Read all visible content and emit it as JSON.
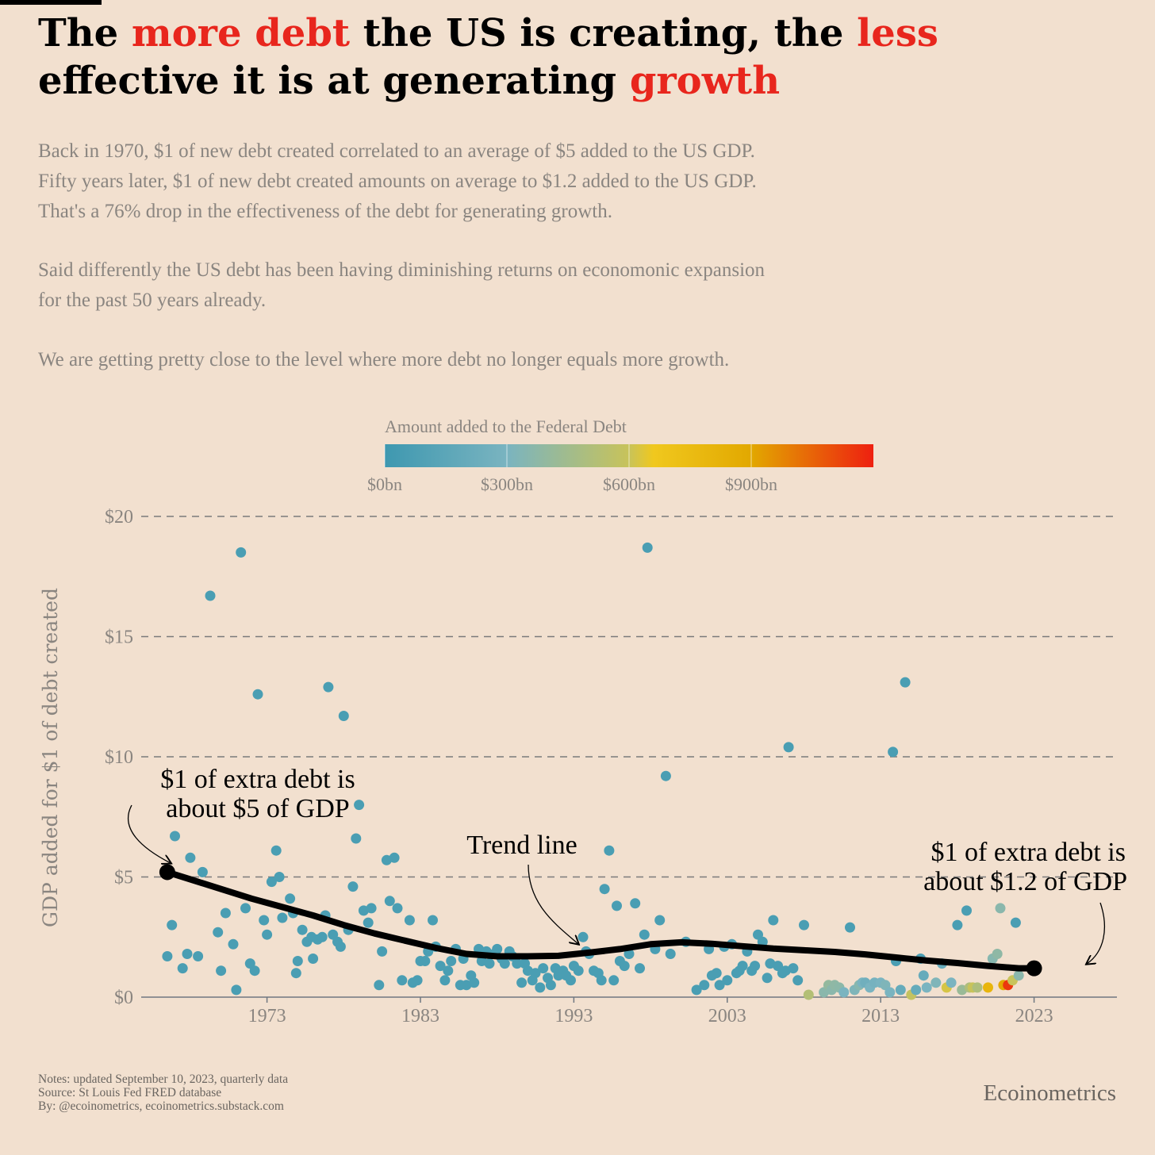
{
  "title": {
    "seg1": "The ",
    "hl1": "more debt",
    "seg2": " the US is creating, the ",
    "hl2": "less",
    "seg3": "effective it is at generating ",
    "hl3": "growth"
  },
  "subtitle": {
    "line1": "Back in 1970, $1 of new debt created correlated to an average of $5 added to the US GDP.",
    "line2": "Fifty years later, $1 of new debt created amounts on average to $1.2 added to the US GDP.",
    "line3": "That's a 76% drop in the effectiveness of the debt for generating growth.",
    "line4": "Said differently the US debt has been having diminishing returns on economonic expansion",
    "line5": "for the past 50 years already.",
    "line6": "We are getting pretty close to the level where more debt no longer equals more growth."
  },
  "chart_data": {
    "type": "scatter",
    "ylabel": "GDP added for $1 of debt created",
    "xlabel": "",
    "ylim": [
      0,
      20
    ],
    "xlim": [
      1964.8,
      2028.4
    ],
    "yticks": [
      0,
      5,
      10,
      15,
      20
    ],
    "ytick_labels": [
      "$0",
      "$5",
      "$10",
      "$15",
      "$20"
    ],
    "xticks": [
      1973,
      1983,
      1993,
      2003,
      2013,
      2023
    ],
    "xtick_labels": [
      "1973",
      "1983",
      "1993",
      "2003",
      "2013",
      "2023"
    ],
    "grid": "horizontal dashed",
    "colorbar": {
      "title": "Amount added to the Federal Debt",
      "ticks": [
        0,
        300,
        600,
        900
      ],
      "tick_labels": [
        "$0bn",
        "$300bn",
        "$600bn",
        "$900bn"
      ],
      "range": [
        0,
        1200
      ],
      "colors": [
        "#3e98b0",
        "#7ab4c0",
        "#c8c35a",
        "#f0c81e",
        "#e2a800",
        "#ee2010"
      ]
    },
    "points": [
      [
        1966.5,
        5.2,
        80
      ],
      [
        1966.5,
        1.7,
        60
      ],
      [
        1966.8,
        3.0,
        60
      ],
      [
        1967.0,
        6.7,
        70
      ],
      [
        1967.5,
        1.2,
        60
      ],
      [
        1967.8,
        1.8,
        60
      ],
      [
        1968.0,
        5.8,
        70
      ],
      [
        1968.5,
        1.7,
        60
      ],
      [
        1968.8,
        5.2,
        60
      ],
      [
        1969.3,
        16.7,
        60
      ],
      [
        1969.8,
        2.7,
        60
      ],
      [
        1970.0,
        1.1,
        60
      ],
      [
        1970.3,
        3.5,
        60
      ],
      [
        1970.8,
        2.2,
        60
      ],
      [
        1971.0,
        0.3,
        60
      ],
      [
        1971.3,
        18.5,
        60
      ],
      [
        1971.6,
        3.7,
        60
      ],
      [
        1971.9,
        1.4,
        60
      ],
      [
        1972.2,
        1.1,
        60
      ],
      [
        1972.4,
        12.6,
        60
      ],
      [
        1972.8,
        3.2,
        60
      ],
      [
        1973.0,
        2.6,
        60
      ],
      [
        1973.3,
        4.8,
        60
      ],
      [
        1973.6,
        6.1,
        60
      ],
      [
        1973.8,
        5.0,
        60
      ],
      [
        1974.0,
        3.3,
        60
      ],
      [
        1974.5,
        4.1,
        60
      ],
      [
        1974.7,
        3.5,
        60
      ],
      [
        1974.9,
        1.0,
        60
      ],
      [
        1975.0,
        1.5,
        60
      ],
      [
        1975.3,
        2.8,
        60
      ],
      [
        1975.6,
        2.3,
        60
      ],
      [
        1975.9,
        2.5,
        60
      ],
      [
        1976.0,
        1.6,
        60
      ],
      [
        1976.3,
        2.4,
        60
      ],
      [
        1976.6,
        2.5,
        60
      ],
      [
        1976.8,
        3.4,
        60
      ],
      [
        1977.0,
        12.9,
        60
      ],
      [
        1977.3,
        2.6,
        60
      ],
      [
        1977.6,
        2.3,
        60
      ],
      [
        1977.8,
        2.1,
        60
      ],
      [
        1978.0,
        11.7,
        60
      ],
      [
        1978.3,
        2.8,
        60
      ],
      [
        1978.6,
        4.6,
        60
      ],
      [
        1978.8,
        6.6,
        60
      ],
      [
        1979.0,
        8.0,
        60
      ],
      [
        1979.3,
        3.6,
        60
      ],
      [
        1979.6,
        3.1,
        60
      ],
      [
        1979.8,
        3.7,
        60
      ],
      [
        1980.3,
        0.5,
        60
      ],
      [
        1980.5,
        1.9,
        60
      ],
      [
        1980.8,
        5.7,
        60
      ],
      [
        1981.0,
        4.0,
        60
      ],
      [
        1981.3,
        5.8,
        60
      ],
      [
        1981.5,
        3.7,
        60
      ],
      [
        1981.8,
        0.7,
        60
      ],
      [
        1982.3,
        3.2,
        60
      ],
      [
        1982.5,
        0.6,
        60
      ],
      [
        1982.8,
        0.7,
        60
      ],
      [
        1983.0,
        1.5,
        60
      ],
      [
        1983.3,
        1.5,
        60
      ],
      [
        1983.5,
        1.9,
        60
      ],
      [
        1983.8,
        3.2,
        60
      ],
      [
        1984.0,
        2.1,
        60
      ],
      [
        1984.3,
        1.3,
        60
      ],
      [
        1984.6,
        0.7,
        60
      ],
      [
        1984.8,
        1.1,
        60
      ],
      [
        1985.0,
        1.5,
        60
      ],
      [
        1985.3,
        2.0,
        60
      ],
      [
        1985.6,
        0.5,
        60
      ],
      [
        1985.8,
        1.6,
        60
      ],
      [
        1986.0,
        0.5,
        60
      ],
      [
        1986.3,
        0.9,
        60
      ],
      [
        1986.5,
        0.6,
        60
      ],
      [
        1986.8,
        2.0,
        60
      ],
      [
        1987.0,
        1.5,
        60
      ],
      [
        1987.3,
        1.9,
        60
      ],
      [
        1987.5,
        1.4,
        60
      ],
      [
        1987.8,
        1.8,
        60
      ],
      [
        1988.0,
        2.0,
        60
      ],
      [
        1988.3,
        1.6,
        60
      ],
      [
        1988.5,
        1.4,
        60
      ],
      [
        1988.8,
        1.9,
        60
      ],
      [
        1989.0,
        1.7,
        60
      ],
      [
        1989.3,
        1.4,
        60
      ],
      [
        1989.6,
        0.6,
        60
      ],
      [
        1989.8,
        1.4,
        60
      ],
      [
        1990.0,
        1.1,
        60
      ],
      [
        1990.3,
        0.7,
        60
      ],
      [
        1990.5,
        1.0,
        60
      ],
      [
        1990.8,
        0.4,
        60
      ],
      [
        1991.0,
        1.2,
        60
      ],
      [
        1991.3,
        0.8,
        60
      ],
      [
        1991.5,
        0.5,
        60
      ],
      [
        1991.8,
        1.2,
        60
      ],
      [
        1992.0,
        0.9,
        60
      ],
      [
        1992.3,
        1.1,
        60
      ],
      [
        1992.5,
        0.9,
        60
      ],
      [
        1992.8,
        0.7,
        60
      ],
      [
        1993.0,
        1.3,
        60
      ],
      [
        1993.3,
        1.1,
        60
      ],
      [
        1993.6,
        2.5,
        60
      ],
      [
        1993.8,
        1.9,
        60
      ],
      [
        1994.0,
        1.8,
        60
      ],
      [
        1994.3,
        1.1,
        60
      ],
      [
        1994.6,
        1.0,
        60
      ],
      [
        1994.8,
        0.7,
        60
      ],
      [
        1995.0,
        4.5,
        60
      ],
      [
        1995.3,
        6.1,
        60
      ],
      [
        1995.6,
        0.7,
        60
      ],
      [
        1995.8,
        3.8,
        60
      ],
      [
        1996.0,
        1.5,
        60
      ],
      [
        1996.3,
        1.3,
        60
      ],
      [
        1996.6,
        1.8,
        60
      ],
      [
        1997.0,
        3.9,
        60
      ],
      [
        1997.3,
        1.2,
        60
      ],
      [
        1997.6,
        2.6,
        60
      ],
      [
        1997.8,
        18.7,
        60
      ],
      [
        1998.3,
        2.0,
        60
      ],
      [
        1998.6,
        3.2,
        60
      ],
      [
        1999.0,
        9.2,
        60
      ],
      [
        1999.3,
        1.8,
        60
      ],
      [
        2000.3,
        2.3,
        60
      ],
      [
        2001.0,
        0.3,
        60
      ],
      [
        2001.5,
        0.5,
        60
      ],
      [
        2001.8,
        2.0,
        60
      ],
      [
        2002.0,
        0.9,
        60
      ],
      [
        2002.3,
        1.0,
        60
      ],
      [
        2002.5,
        0.5,
        60
      ],
      [
        2002.8,
        2.1,
        60
      ],
      [
        2003.0,
        0.7,
        60
      ],
      [
        2003.3,
        2.2,
        60
      ],
      [
        2003.6,
        1.0,
        60
      ],
      [
        2003.8,
        1.1,
        60
      ],
      [
        2004.0,
        1.3,
        60
      ],
      [
        2004.3,
        1.9,
        60
      ],
      [
        2004.6,
        1.1,
        60
      ],
      [
        2004.8,
        1.3,
        60
      ],
      [
        2005.0,
        2.6,
        60
      ],
      [
        2005.3,
        2.3,
        60
      ],
      [
        2005.6,
        0.8,
        60
      ],
      [
        2005.8,
        1.4,
        60
      ],
      [
        2006.0,
        3.2,
        60
      ],
      [
        2006.3,
        1.3,
        60
      ],
      [
        2006.6,
        1.0,
        60
      ],
      [
        2006.8,
        1.1,
        60
      ],
      [
        2007.0,
        10.4,
        60
      ],
      [
        2007.3,
        1.2,
        60
      ],
      [
        2007.6,
        0.7,
        60
      ],
      [
        2008.0,
        3.0,
        60
      ],
      [
        2008.3,
        0.1,
        520
      ],
      [
        2009.3,
        0.2,
        360
      ],
      [
        2009.6,
        0.5,
        400
      ],
      [
        2009.8,
        0.3,
        360
      ],
      [
        2010.0,
        0.5,
        380
      ],
      [
        2010.3,
        0.4,
        370
      ],
      [
        2010.6,
        0.2,
        300
      ],
      [
        2011.0,
        2.9,
        60
      ],
      [
        2011.3,
        0.3,
        320
      ],
      [
        2011.6,
        0.5,
        350
      ],
      [
        2011.8,
        0.6,
        300
      ],
      [
        2012.0,
        0.6,
        250
      ],
      [
        2012.3,
        0.4,
        300
      ],
      [
        2012.6,
        0.6,
        280
      ],
      [
        2013.0,
        0.6,
        300
      ],
      [
        2013.3,
        0.5,
        320
      ],
      [
        2013.6,
        0.2,
        300
      ],
      [
        2013.8,
        10.2,
        60
      ],
      [
        2014.0,
        1.5,
        60
      ],
      [
        2014.3,
        0.3,
        200
      ],
      [
        2014.6,
        13.1,
        60
      ],
      [
        2015.0,
        0.1,
        580
      ],
      [
        2015.3,
        0.3,
        200
      ],
      [
        2015.6,
        1.6,
        60
      ],
      [
        2015.8,
        0.9,
        200
      ],
      [
        2016.0,
        0.4,
        300
      ],
      [
        2016.6,
        0.6,
        320
      ],
      [
        2017.0,
        1.4,
        200
      ],
      [
        2017.3,
        0.4,
        620
      ],
      [
        2017.6,
        0.6,
        300
      ],
      [
        2018.0,
        3.0,
        60
      ],
      [
        2018.3,
        0.3,
        420
      ],
      [
        2018.6,
        3.6,
        60
      ],
      [
        2018.8,
        0.4,
        500
      ],
      [
        2019.0,
        0.4,
        600
      ],
      [
        2019.3,
        0.4,
        500
      ],
      [
        2020.0,
        0.4,
        800
      ],
      [
        2020.3,
        1.6,
        350
      ],
      [
        2020.6,
        1.8,
        380
      ],
      [
        2020.8,
        3.7,
        360
      ],
      [
        2021.0,
        0.5,
        900
      ],
      [
        2021.3,
        0.5,
        1150
      ],
      [
        2021.6,
        0.7,
        600
      ],
      [
        2021.8,
        3.1,
        60
      ],
      [
        2022.0,
        0.9,
        360
      ]
    ],
    "trend": [
      [
        1966.5,
        5.2
      ],
      [
        1968,
        4.9
      ],
      [
        1970,
        4.5
      ],
      [
        1972,
        4.1
      ],
      [
        1974,
        3.75
      ],
      [
        1976,
        3.4
      ],
      [
        1978,
        3.0
      ],
      [
        1980,
        2.65
      ],
      [
        1982,
        2.35
      ],
      [
        1984,
        2.05
      ],
      [
        1986,
        1.8
      ],
      [
        1988,
        1.7
      ],
      [
        1990,
        1.7
      ],
      [
        1992,
        1.72
      ],
      [
        1994,
        1.85
      ],
      [
        1996,
        2.0
      ],
      [
        1998,
        2.2
      ],
      [
        2000,
        2.28
      ],
      [
        2002,
        2.22
      ],
      [
        2004,
        2.12
      ],
      [
        2006,
        2.02
      ],
      [
        2008,
        1.95
      ],
      [
        2010,
        1.88
      ],
      [
        2012,
        1.78
      ],
      [
        2014,
        1.65
      ],
      [
        2016,
        1.52
      ],
      [
        2018,
        1.42
      ],
      [
        2020,
        1.3
      ],
      [
        2022,
        1.2
      ],
      [
        2023,
        1.2
      ]
    ],
    "trend_endpoints": [
      [
        1966.5,
        5.2
      ],
      [
        2023,
        1.2
      ]
    ],
    "annotations": {
      "start_line1": "$1 of extra debt is",
      "start_line2": "about $5 of GDP",
      "trend": "Trend line",
      "end_line1": "$1 of extra debt is",
      "end_line2": "about $1.2 of GDP"
    }
  },
  "notes": {
    "line1": "Notes: updated September 10, 2023, quarterly data",
    "line2": "Source: St Louis Fed FRED database",
    "line3": "By: @ecoinometrics, ecoinometrics.substack.com"
  },
  "brand": "Ecoinometrics"
}
